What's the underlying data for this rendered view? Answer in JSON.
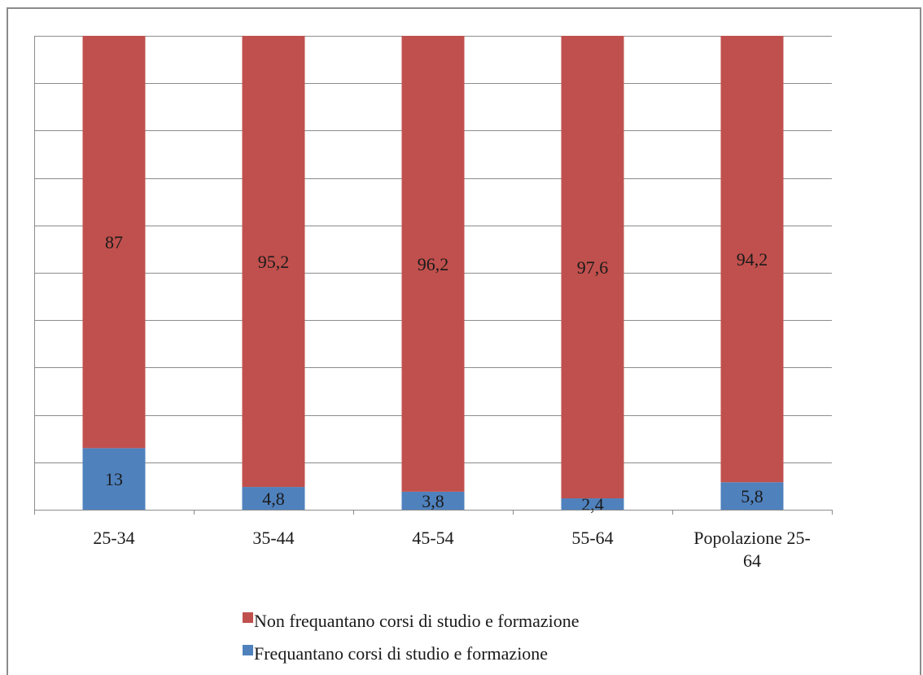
{
  "chart_data": {
    "type": "bar",
    "stacked": true,
    "categories": [
      "25-34",
      "35-44",
      "45-54",
      "55-64",
      "Popolazione 25-64"
    ],
    "category_lines": [
      [
        "25-34"
      ],
      [
        "35-44"
      ],
      [
        "45-54"
      ],
      [
        "55-64"
      ],
      [
        "Popolazione 25-",
        "64"
      ]
    ],
    "series": [
      {
        "name": "Frequantano corsi di studio e formazione",
        "values": [
          13,
          4.8,
          3.8,
          2.4,
          5.8
        ],
        "labels": [
          "13",
          "4,8",
          "3,8",
          "2,4",
          "5,8"
        ],
        "color": "#4f81bd"
      },
      {
        "name": "Non frequantano corsi di studio e formazione",
        "values": [
          87,
          95.2,
          96.2,
          97.6,
          94.2
        ],
        "labels": [
          "87",
          "95,2",
          "96,2",
          "97,6",
          "94,2"
        ],
        "color": "#c0504d"
      }
    ],
    "ylim": [
      0,
      100
    ],
    "gridlines": 10,
    "grid": true,
    "legend": "bottom",
    "legend_order": [
      "Non frequantano corsi di studio e formazione",
      "Frequantano corsi di studio e formazione"
    ]
  }
}
